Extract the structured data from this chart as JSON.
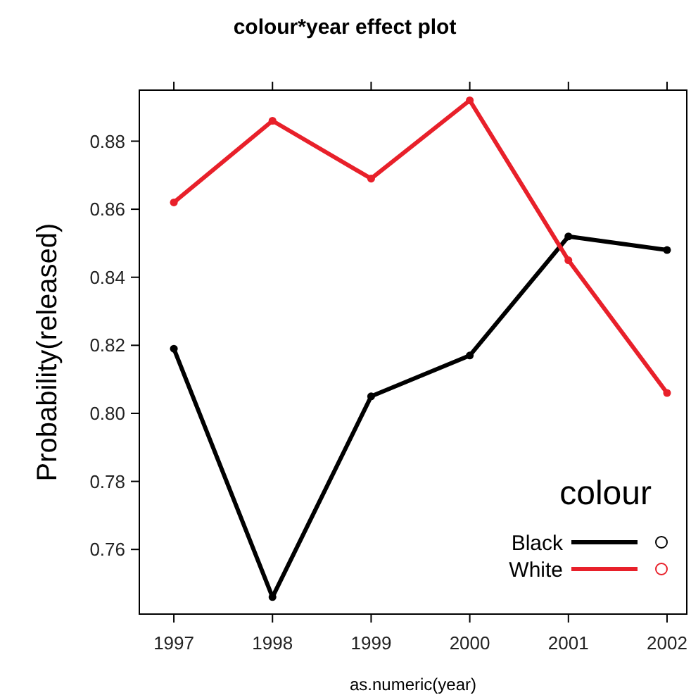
{
  "chart_data": {
    "type": "line",
    "title": "colour*year effect plot",
    "xlabel": "as.numeric(year)",
    "ylabel": "Probability(released)",
    "legend_title": "colour",
    "legend": "bottom right",
    "marker": "circle",
    "line_style": "solid",
    "grid": false,
    "x": [
      1997,
      1998,
      1999,
      2000,
      2001,
      2002
    ],
    "xlim": [
      1996.65,
      2002.2
    ],
    "xticks": [
      1997,
      1998,
      1999,
      2000,
      2001,
      2002
    ],
    "ylim": [
      0.741,
      0.895
    ],
    "yticks": [
      {
        "value": 0.76,
        "label": "0.76"
      },
      {
        "value": 0.78,
        "label": "0.78"
      },
      {
        "value": 0.8,
        "label": "0.80"
      },
      {
        "value": 0.82,
        "label": "0.82"
      },
      {
        "value": 0.84,
        "label": "0.84"
      },
      {
        "value": 0.86,
        "label": "0.86"
      },
      {
        "value": 0.88,
        "label": "0.88"
      }
    ],
    "series": [
      {
        "name": "Black",
        "color": "#000000",
        "values": [
          0.819,
          0.746,
          0.805,
          0.817,
          0.852,
          0.848
        ]
      },
      {
        "name": "White",
        "color": "#e8202a",
        "values": [
          0.862,
          0.886,
          0.869,
          0.892,
          0.845,
          0.806
        ]
      }
    ]
  }
}
